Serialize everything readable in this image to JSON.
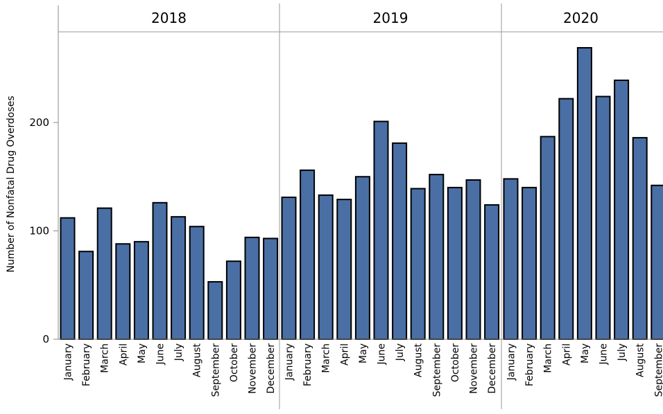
{
  "chart_data": {
    "type": "bar",
    "ylabel": "Number of Nonfatal Drug Overdoses",
    "ylim": [
      0,
      290
    ],
    "yticks": [
      0,
      100,
      200
    ],
    "grid": false,
    "colors": {
      "bar_fill": "#4a6fa5",
      "bar_stroke": "#000000",
      "panel_line": "#999999"
    },
    "panels": [
      {
        "year": "2018",
        "categories": [
          "January",
          "February",
          "March",
          "April",
          "May",
          "June",
          "July",
          "August",
          "September",
          "October",
          "November",
          "December"
        ],
        "values": [
          112,
          81,
          121,
          88,
          90,
          126,
          113,
          104,
          53,
          72,
          94,
          93
        ]
      },
      {
        "year": "2019",
        "categories": [
          "January",
          "February",
          "March",
          "April",
          "May",
          "June",
          "July",
          "August",
          "September",
          "October",
          "November",
          "December"
        ],
        "values": [
          131,
          156,
          133,
          129,
          150,
          201,
          181,
          139,
          152,
          140,
          147,
          124
        ]
      },
      {
        "year": "2020",
        "categories": [
          "January",
          "February",
          "March",
          "April",
          "May",
          "June",
          "July",
          "August",
          "September"
        ],
        "values": [
          148,
          140,
          187,
          222,
          269,
          224,
          239,
          186,
          142
        ]
      }
    ]
  }
}
